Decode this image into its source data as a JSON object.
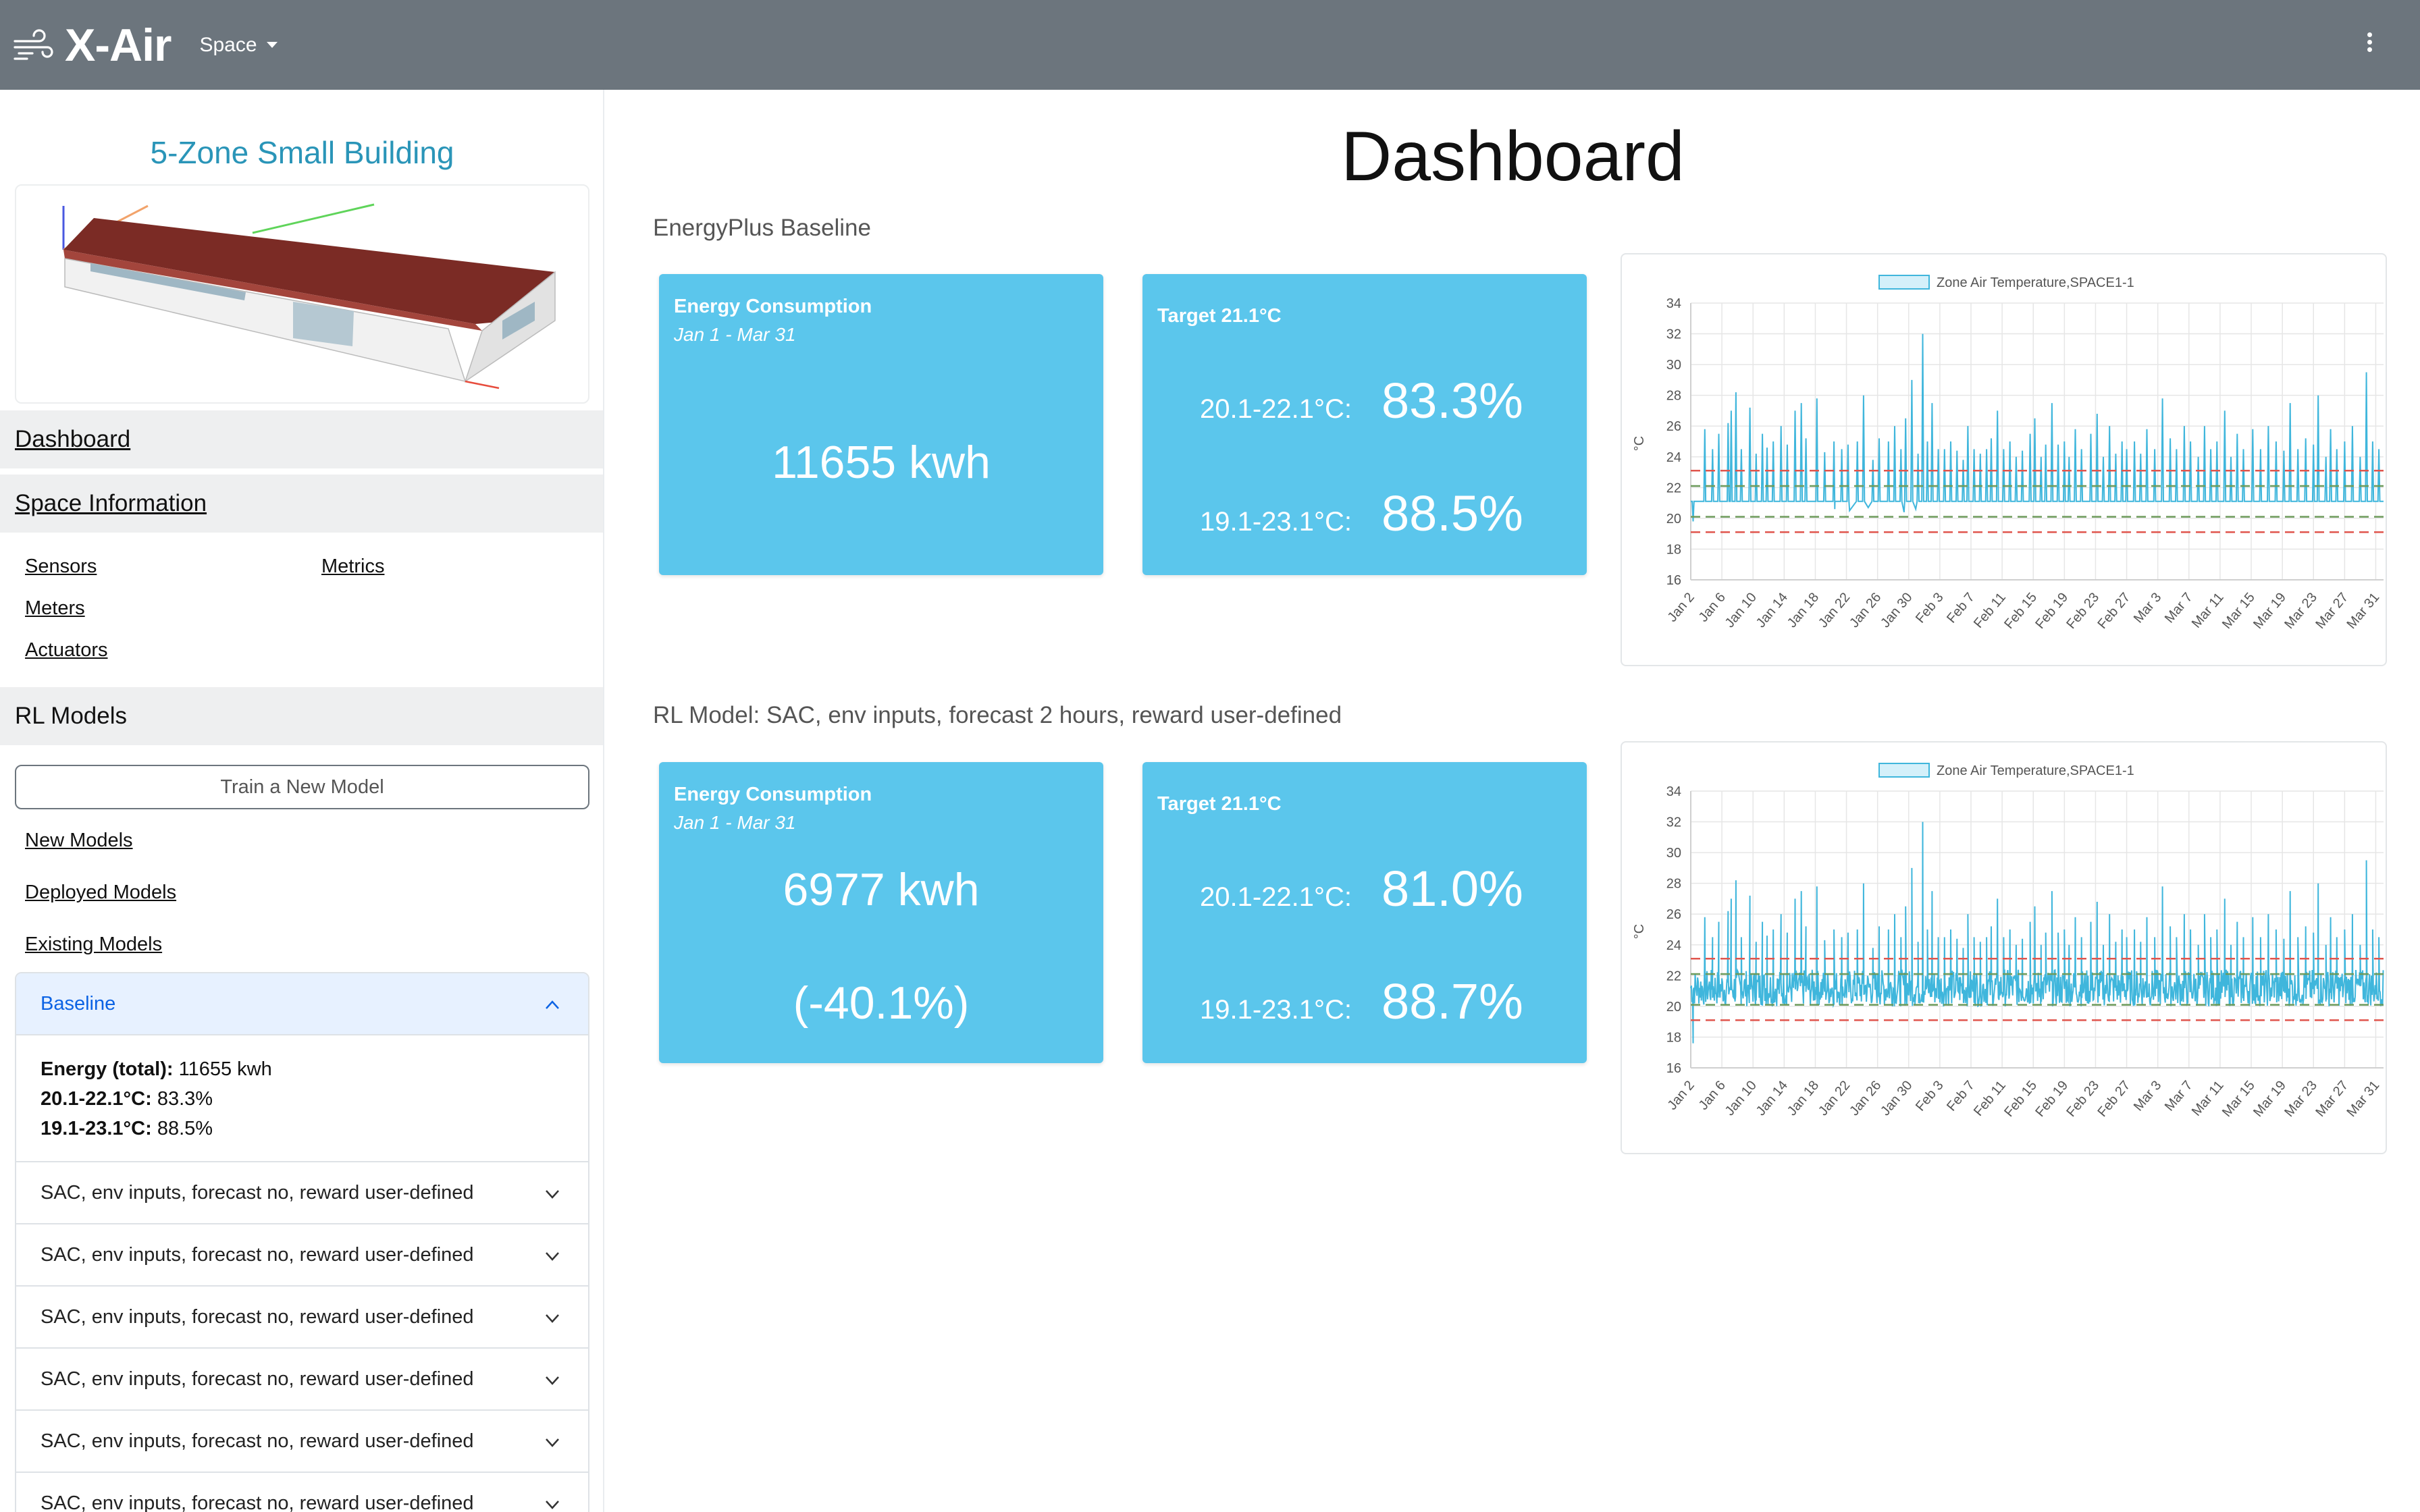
{
  "app": {
    "title": "X-Air",
    "space_menu": "Space"
  },
  "sidebar": {
    "building_title": "5-Zone Small Building",
    "dashboard": "Dashboard",
    "space_information": "Space Information",
    "space_links": {
      "sensors": "Sensors",
      "metrics": "Metrics",
      "meters": "Meters",
      "actuators": "Actuators"
    },
    "rl_models": "RL Models",
    "train_button": "Train a New Model",
    "model_links": {
      "new": "New Models",
      "deployed": "Deployed Models",
      "existing": "Existing Models"
    },
    "accordion": {
      "open_item": "Baseline",
      "details": {
        "energy_label": "Energy (total):",
        "energy_value": "11655 kwh",
        "range1_label": "20.1-22.1°C:",
        "range1_value": "83.3%",
        "range2_label": "19.1-23.1°C:",
        "range2_value": "88.5%"
      },
      "items": [
        "SAC, env inputs, forecast no, reward user-defined",
        "SAC, env inputs, forecast no, reward user-defined",
        "SAC, env inputs, forecast no, reward user-defined",
        "SAC, env inputs, forecast no, reward user-defined",
        "SAC, env inputs, forecast no, reward user-defined",
        "SAC, env inputs, forecast no, reward user-defined"
      ]
    }
  },
  "main": {
    "title": "Dashboard",
    "baseline": {
      "label": "EnergyPlus Baseline",
      "energy": {
        "title": "Energy Consumption",
        "period": "Jan 1 - Mar 31",
        "value": "11655 kwh"
      },
      "target": {
        "title": "Target 21.1°C",
        "range1_label": "20.1-22.1°C:",
        "range1_value": "83.3%",
        "range2_label": "19.1-23.1°C:",
        "range2_value": "88.5%"
      }
    },
    "rl": {
      "label": "RL Model: SAC, env inputs, forecast 2 hours, reward user-defined",
      "energy": {
        "title": "Energy Consumption",
        "period": "Jan 1 - Mar 31",
        "value": "6977 kwh",
        "delta": "(-40.1%)"
      },
      "target": {
        "title": "Target 21.1°C",
        "range1_label": "20.1-22.1°C:",
        "range1_value": "81.0%",
        "range2_label": "19.1-23.1°C:",
        "range2_value": "88.7%"
      }
    }
  },
  "colors": {
    "navbar": "#6c757d",
    "card": "#5bc6ec",
    "series": "#3fb6dc",
    "band_inner": "#6c9a5a",
    "band_outer": "#e0554d"
  },
  "chart_data": [
    {
      "type": "line",
      "legend": "Zone Air Temperature,SPACE1-1",
      "legend_position": "top",
      "ylabel": "°C",
      "ylim": [
        16,
        34
      ],
      "yticks": [
        16,
        18,
        20,
        22,
        24,
        26,
        28,
        30,
        32,
        34
      ],
      "x_ticks": [
        "Jan 2",
        "Jan 6",
        "Jan 10",
        "Jan 14",
        "Jan 18",
        "Jan 22",
        "Jan 26",
        "Jan 30",
        "Feb 3",
        "Feb 7",
        "Feb 11",
        "Feb 15",
        "Feb 19",
        "Feb 23",
        "Feb 27",
        "Mar 3",
        "Mar 7",
        "Mar 11",
        "Mar 15",
        "Mar 19",
        "Mar 23",
        "Mar 27",
        "Mar 31"
      ],
      "grid": true,
      "reference_lines": [
        19.1,
        20.1,
        22.1,
        23.1
      ],
      "series_style": "baseline",
      "baseline_level": 21.1,
      "spikes": [
        {
          "x": 0.3,
          "y": 19.8
        },
        {
          "x": 1.8,
          "y": 25.8
        },
        {
          "x": 2.8,
          "y": 24.5
        },
        {
          "x": 3.6,
          "y": 25.5
        },
        {
          "x": 4.8,
          "y": 26.2
        },
        {
          "x": 5.2,
          "y": 27.0
        },
        {
          "x": 5.8,
          "y": 28.2
        },
        {
          "x": 6.5,
          "y": 24.5
        },
        {
          "x": 7.6,
          "y": 27.2
        },
        {
          "x": 8.4,
          "y": 24.2
        },
        {
          "x": 9.2,
          "y": 25.5
        },
        {
          "x": 9.8,
          "y": 24.6
        },
        {
          "x": 10.6,
          "y": 25.0
        },
        {
          "x": 11.6,
          "y": 26.0
        },
        {
          "x": 12.4,
          "y": 24.8
        },
        {
          "x": 13.4,
          "y": 27.0
        },
        {
          "x": 14.2,
          "y": 27.5
        },
        {
          "x": 14.8,
          "y": 25.2
        },
        {
          "x": 16.2,
          "y": 27.8
        },
        {
          "x": 17.2,
          "y": 24.3
        },
        {
          "x": 18.4,
          "y": 25.0
        },
        {
          "x": 19.4,
          "y": 24.5
        },
        {
          "x": 20.2,
          "y": 24.8
        },
        {
          "x": 21.4,
          "y": 25.0
        },
        {
          "x": 22.2,
          "y": 28.0
        },
        {
          "x": 23.4,
          "y": 23.8
        },
        {
          "x": 24.2,
          "y": 25.2
        },
        {
          "x": 25.4,
          "y": 25.0
        },
        {
          "x": 26.2,
          "y": 26.0
        },
        {
          "x": 27.0,
          "y": 24.5
        },
        {
          "x": 27.6,
          "y": 26.5
        },
        {
          "x": 28.4,
          "y": 29.0
        },
        {
          "x": 29.2,
          "y": 24.2
        },
        {
          "x": 29.8,
          "y": 32.0
        },
        {
          "x": 30.4,
          "y": 25.0
        },
        {
          "x": 31.0,
          "y": 27.5
        },
        {
          "x": 31.8,
          "y": 24.5
        },
        {
          "x": 32.6,
          "y": 24.5
        },
        {
          "x": 33.4,
          "y": 25.0
        },
        {
          "x": 34.2,
          "y": 24.4
        },
        {
          "x": 35.0,
          "y": 23.8
        },
        {
          "x": 35.6,
          "y": 26.0
        },
        {
          "x": 36.4,
          "y": 24.5
        },
        {
          "x": 37.2,
          "y": 24.2
        },
        {
          "x": 38.0,
          "y": 24.5
        },
        {
          "x": 38.6,
          "y": 25.2
        },
        {
          "x": 39.4,
          "y": 27.0
        },
        {
          "x": 40.2,
          "y": 24.5
        },
        {
          "x": 41.0,
          "y": 25.0
        },
        {
          "x": 41.8,
          "y": 24.0
        },
        {
          "x": 42.6,
          "y": 24.4
        },
        {
          "x": 43.6,
          "y": 25.5
        },
        {
          "x": 44.2,
          "y": 26.5
        },
        {
          "x": 45.0,
          "y": 24.0
        },
        {
          "x": 45.6,
          "y": 24.8
        },
        {
          "x": 46.4,
          "y": 27.5
        },
        {
          "x": 47.2,
          "y": 24.8
        },
        {
          "x": 48.0,
          "y": 25.0
        },
        {
          "x": 48.6,
          "y": 24.0
        },
        {
          "x": 49.4,
          "y": 25.8
        },
        {
          "x": 50.2,
          "y": 24.5
        },
        {
          "x": 51.4,
          "y": 25.5
        },
        {
          "x": 52.2,
          "y": 26.8
        },
        {
          "x": 53.0,
          "y": 24.0
        },
        {
          "x": 53.8,
          "y": 26.0
        },
        {
          "x": 54.6,
          "y": 24.2
        },
        {
          "x": 55.4,
          "y": 25.0
        },
        {
          "x": 56.0,
          "y": 24.5
        },
        {
          "x": 57.0,
          "y": 25.0
        },
        {
          "x": 57.8,
          "y": 24.2
        },
        {
          "x": 58.6,
          "y": 25.8
        },
        {
          "x": 59.6,
          "y": 24.5
        },
        {
          "x": 60.6,
          "y": 27.8
        },
        {
          "x": 61.6,
          "y": 25.2
        },
        {
          "x": 62.4,
          "y": 24.5
        },
        {
          "x": 63.4,
          "y": 26.0
        },
        {
          "x": 64.2,
          "y": 25.0
        },
        {
          "x": 65.2,
          "y": 24.0
        },
        {
          "x": 66.0,
          "y": 26.0
        },
        {
          "x": 66.8,
          "y": 24.5
        },
        {
          "x": 67.6,
          "y": 25.0
        },
        {
          "x": 68.6,
          "y": 27.0
        },
        {
          "x": 69.4,
          "y": 24.0
        },
        {
          "x": 70.2,
          "y": 25.5
        },
        {
          "x": 71.0,
          "y": 24.5
        },
        {
          "x": 72.2,
          "y": 25.8
        },
        {
          "x": 73.2,
          "y": 24.5
        },
        {
          "x": 74.2,
          "y": 26.0
        },
        {
          "x": 75.2,
          "y": 25.0
        },
        {
          "x": 76.2,
          "y": 24.4
        },
        {
          "x": 77.0,
          "y": 27.5
        },
        {
          "x": 78.0,
          "y": 24.5
        },
        {
          "x": 79.0,
          "y": 25.2
        },
        {
          "x": 80.0,
          "y": 24.8
        },
        {
          "x": 80.6,
          "y": 28.0
        },
        {
          "x": 81.6,
          "y": 24.0
        },
        {
          "x": 82.2,
          "y": 25.8
        },
        {
          "x": 83.0,
          "y": 24.5
        },
        {
          "x": 84.0,
          "y": 25.0
        },
        {
          "x": 85.0,
          "y": 26.0
        },
        {
          "x": 86.0,
          "y": 24.0
        },
        {
          "x": 86.8,
          "y": 29.5
        },
        {
          "x": 87.6,
          "y": 25.0
        },
        {
          "x": 88.4,
          "y": 24.5
        }
      ]
    },
    {
      "type": "line",
      "legend": "Zone Air Temperature,SPACE1-1",
      "legend_position": "top",
      "ylabel": "°C",
      "ylim": [
        16,
        34
      ],
      "yticks": [
        16,
        18,
        20,
        22,
        24,
        26,
        28,
        30,
        32,
        34
      ],
      "x_ticks": [
        "Jan 2",
        "Jan 6",
        "Jan 10",
        "Jan 14",
        "Jan 18",
        "Jan 22",
        "Jan 26",
        "Jan 30",
        "Feb 3",
        "Feb 7",
        "Feb 11",
        "Feb 15",
        "Feb 19",
        "Feb 23",
        "Feb 27",
        "Mar 3",
        "Mar 7",
        "Mar 11",
        "Mar 15",
        "Mar 19",
        "Mar 23",
        "Mar 27",
        "Mar 31"
      ],
      "grid": true,
      "reference_lines": [
        19.1,
        20.1,
        22.1,
        23.1
      ],
      "series_style": "rl",
      "band": [
        20.0,
        22.4
      ],
      "spikes": [
        {
          "x": 0.3,
          "y": 17.6
        },
        {
          "x": 1.8,
          "y": 25.8
        },
        {
          "x": 2.8,
          "y": 24.5
        },
        {
          "x": 3.6,
          "y": 25.5
        },
        {
          "x": 4.8,
          "y": 26.2
        },
        {
          "x": 5.2,
          "y": 27.0
        },
        {
          "x": 5.8,
          "y": 28.2
        },
        {
          "x": 6.5,
          "y": 24.5
        },
        {
          "x": 7.6,
          "y": 27.2
        },
        {
          "x": 8.4,
          "y": 24.2
        },
        {
          "x": 9.2,
          "y": 25.5
        },
        {
          "x": 9.8,
          "y": 24.6
        },
        {
          "x": 10.6,
          "y": 25.0
        },
        {
          "x": 11.6,
          "y": 26.0
        },
        {
          "x": 12.4,
          "y": 24.8
        },
        {
          "x": 13.4,
          "y": 27.0
        },
        {
          "x": 14.2,
          "y": 27.5
        },
        {
          "x": 14.8,
          "y": 25.2
        },
        {
          "x": 16.2,
          "y": 27.8
        },
        {
          "x": 17.2,
          "y": 24.3
        },
        {
          "x": 18.4,
          "y": 25.0
        },
        {
          "x": 19.4,
          "y": 24.5
        },
        {
          "x": 20.2,
          "y": 24.8
        },
        {
          "x": 21.4,
          "y": 25.0
        },
        {
          "x": 22.2,
          "y": 28.0
        },
        {
          "x": 23.4,
          "y": 23.8
        },
        {
          "x": 24.2,
          "y": 25.2
        },
        {
          "x": 25.4,
          "y": 25.0
        },
        {
          "x": 26.2,
          "y": 26.0
        },
        {
          "x": 27.0,
          "y": 24.5
        },
        {
          "x": 27.6,
          "y": 26.5
        },
        {
          "x": 28.4,
          "y": 29.0
        },
        {
          "x": 29.2,
          "y": 24.2
        },
        {
          "x": 29.8,
          "y": 32.0
        },
        {
          "x": 30.4,
          "y": 25.0
        },
        {
          "x": 31.0,
          "y": 27.5
        },
        {
          "x": 31.8,
          "y": 24.5
        },
        {
          "x": 32.6,
          "y": 24.5
        },
        {
          "x": 33.4,
          "y": 25.0
        },
        {
          "x": 34.2,
          "y": 24.4
        },
        {
          "x": 35.0,
          "y": 23.8
        },
        {
          "x": 35.6,
          "y": 26.0
        },
        {
          "x": 36.4,
          "y": 24.5
        },
        {
          "x": 37.2,
          "y": 24.2
        },
        {
          "x": 38.0,
          "y": 24.5
        },
        {
          "x": 38.6,
          "y": 25.2
        },
        {
          "x": 39.4,
          "y": 27.0
        },
        {
          "x": 40.2,
          "y": 24.5
        },
        {
          "x": 41.0,
          "y": 25.0
        },
        {
          "x": 41.8,
          "y": 24.0
        },
        {
          "x": 42.6,
          "y": 24.4
        },
        {
          "x": 43.6,
          "y": 25.5
        },
        {
          "x": 44.2,
          "y": 26.5
        },
        {
          "x": 45.0,
          "y": 24.0
        },
        {
          "x": 45.6,
          "y": 24.8
        },
        {
          "x": 46.4,
          "y": 27.5
        },
        {
          "x": 47.2,
          "y": 24.8
        },
        {
          "x": 48.0,
          "y": 25.0
        },
        {
          "x": 48.6,
          "y": 24.0
        },
        {
          "x": 49.4,
          "y": 25.8
        },
        {
          "x": 50.2,
          "y": 24.5
        },
        {
          "x": 51.4,
          "y": 25.5
        },
        {
          "x": 52.2,
          "y": 26.8
        },
        {
          "x": 53.0,
          "y": 24.0
        },
        {
          "x": 53.8,
          "y": 26.0
        },
        {
          "x": 54.6,
          "y": 24.2
        },
        {
          "x": 55.4,
          "y": 25.0
        },
        {
          "x": 56.0,
          "y": 24.5
        },
        {
          "x": 57.0,
          "y": 25.0
        },
        {
          "x": 57.8,
          "y": 24.2
        },
        {
          "x": 58.6,
          "y": 25.8
        },
        {
          "x": 59.6,
          "y": 24.5
        },
        {
          "x": 60.6,
          "y": 27.8
        },
        {
          "x": 61.6,
          "y": 25.2
        },
        {
          "x": 62.4,
          "y": 24.5
        },
        {
          "x": 63.4,
          "y": 26.0
        },
        {
          "x": 64.2,
          "y": 25.0
        },
        {
          "x": 65.2,
          "y": 24.0
        },
        {
          "x": 66.0,
          "y": 26.0
        },
        {
          "x": 66.8,
          "y": 24.5
        },
        {
          "x": 67.6,
          "y": 25.0
        },
        {
          "x": 68.6,
          "y": 27.0
        },
        {
          "x": 69.4,
          "y": 24.0
        },
        {
          "x": 70.2,
          "y": 25.5
        },
        {
          "x": 71.0,
          "y": 24.5
        },
        {
          "x": 72.2,
          "y": 25.8
        },
        {
          "x": 73.2,
          "y": 24.5
        },
        {
          "x": 74.2,
          "y": 26.0
        },
        {
          "x": 75.2,
          "y": 25.0
        },
        {
          "x": 76.2,
          "y": 24.4
        },
        {
          "x": 77.0,
          "y": 27.5
        },
        {
          "x": 78.0,
          "y": 24.5
        },
        {
          "x": 79.0,
          "y": 25.2
        },
        {
          "x": 80.0,
          "y": 24.8
        },
        {
          "x": 80.6,
          "y": 28.0
        },
        {
          "x": 81.6,
          "y": 24.0
        },
        {
          "x": 82.2,
          "y": 25.8
        },
        {
          "x": 83.0,
          "y": 24.5
        },
        {
          "x": 84.0,
          "y": 25.0
        },
        {
          "x": 85.0,
          "y": 26.0
        },
        {
          "x": 86.0,
          "y": 24.0
        },
        {
          "x": 86.8,
          "y": 29.5
        },
        {
          "x": 87.6,
          "y": 25.0
        },
        {
          "x": 88.4,
          "y": 24.5
        }
      ]
    }
  ]
}
